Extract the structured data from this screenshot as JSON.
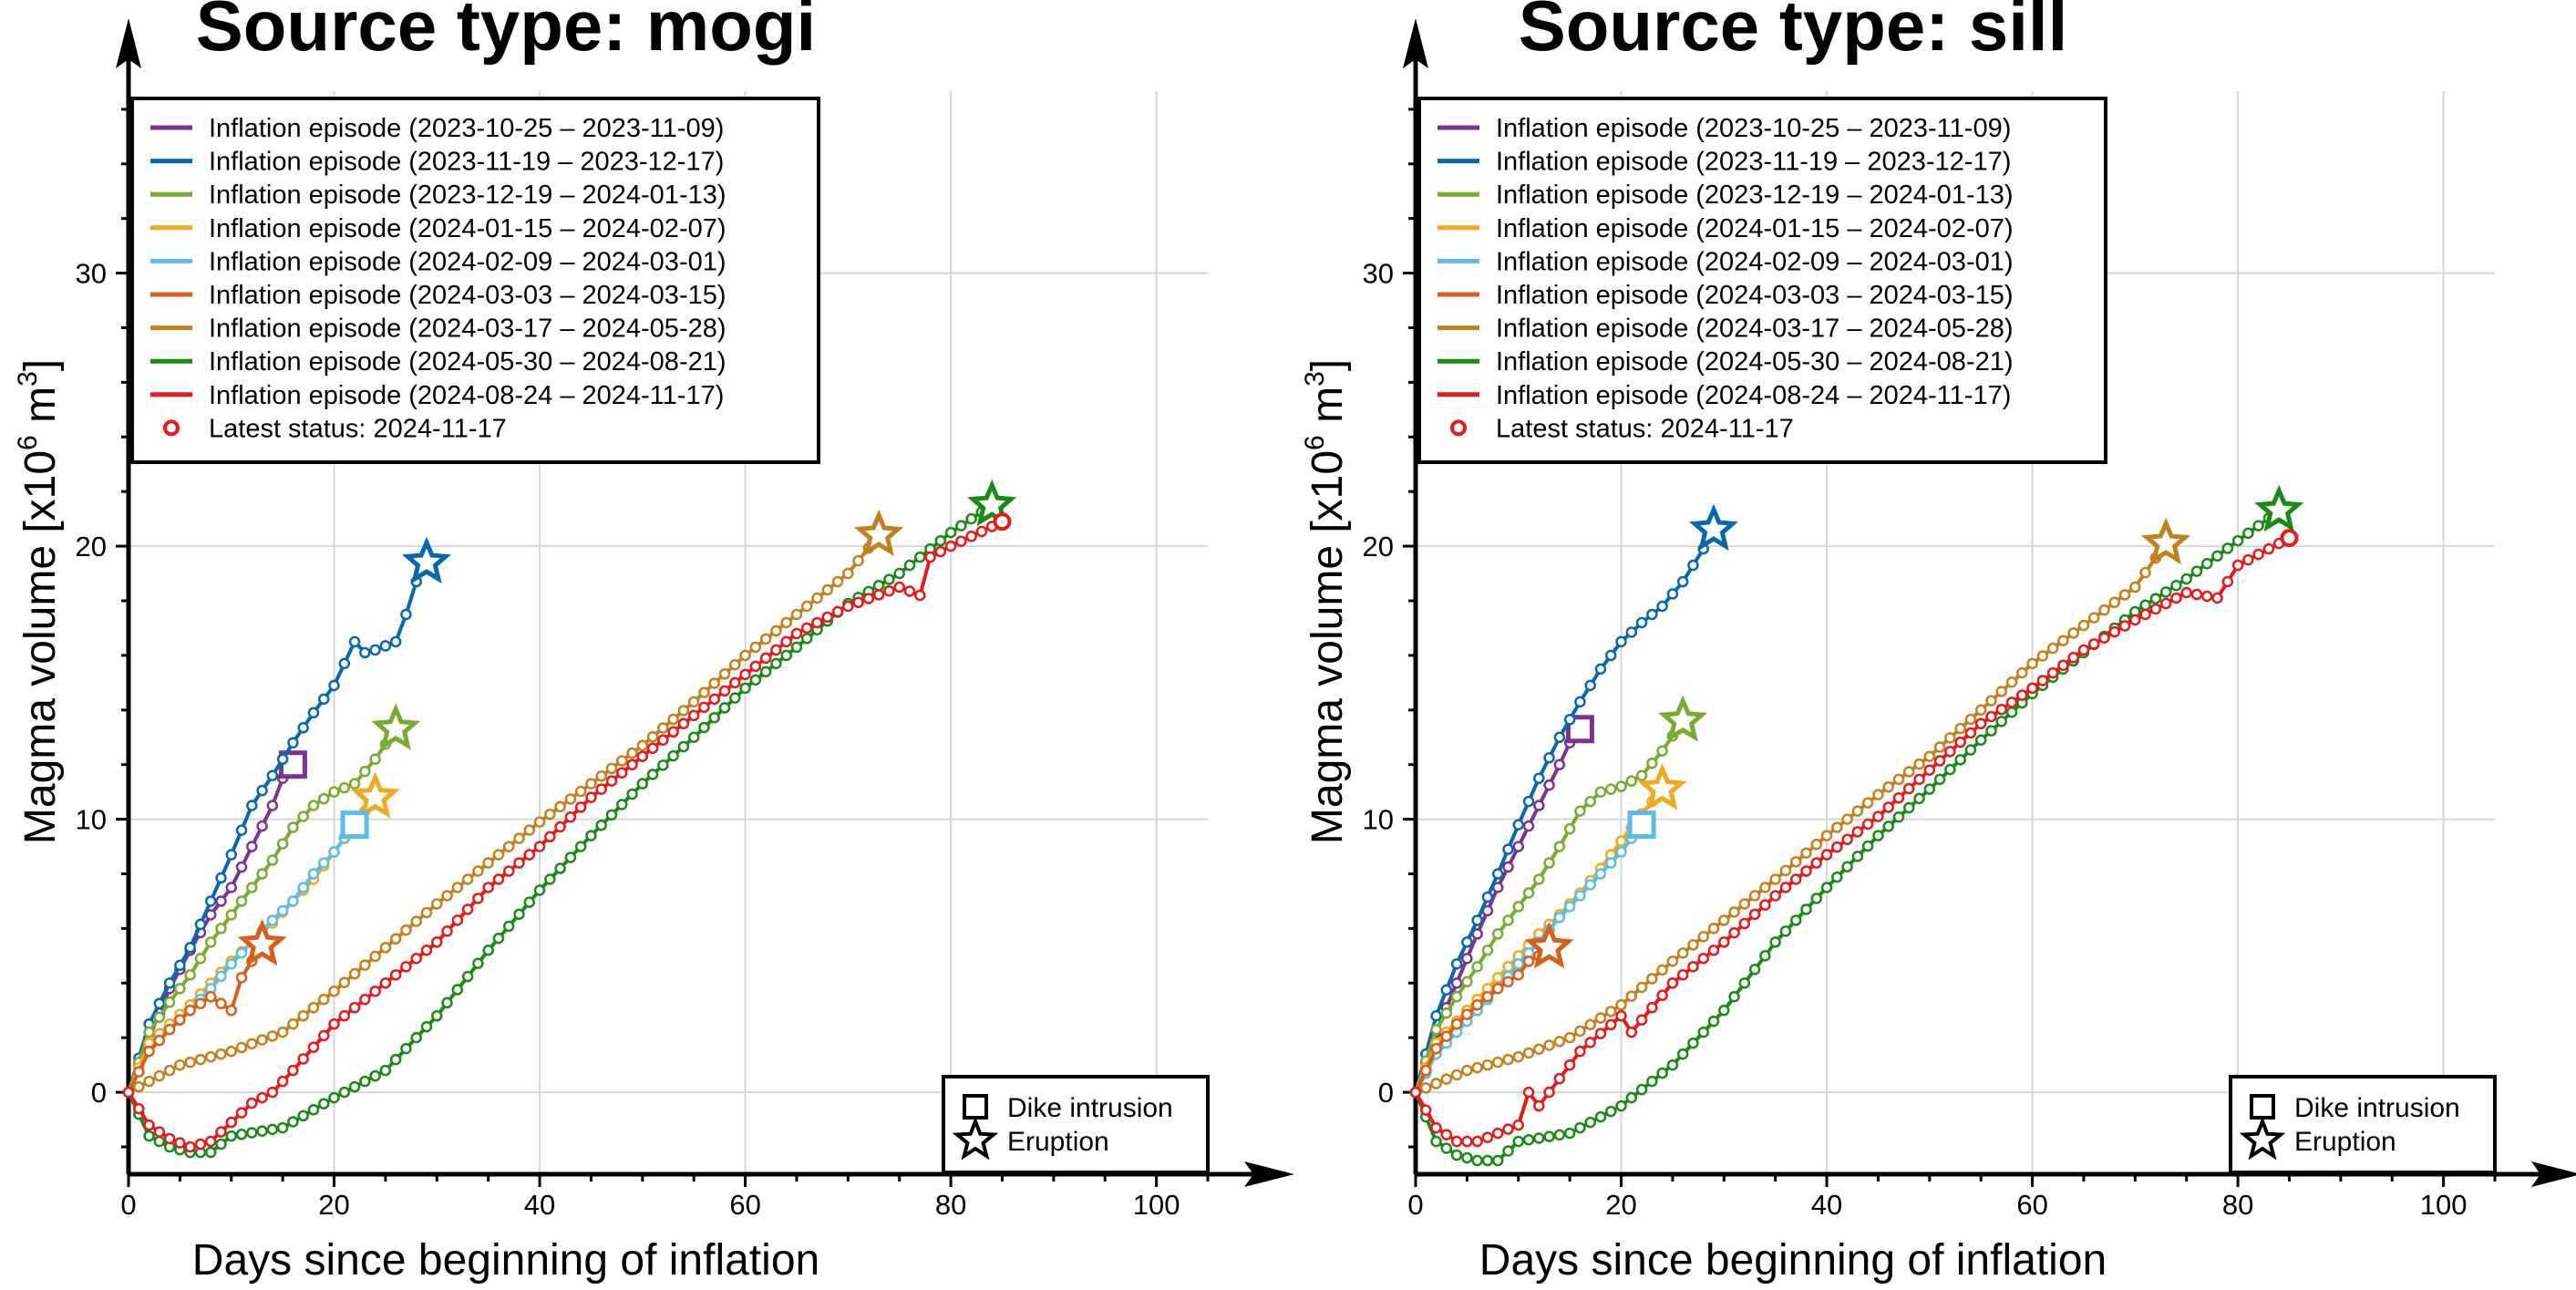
{
  "chart_data": [
    {
      "type": "line",
      "title": "Source type: mogi",
      "xlabel": "Days since beginning of inflation",
      "ylabel_main": "Magma volume [x10",
      "ylabel_exp": "6",
      "ylabel_unit": " m",
      "ylabel_unit_exp": "3",
      "ylabel_end": "]",
      "xlim": [
        0,
        105
      ],
      "ylim": [
        -3,
        39
      ],
      "x_ticks": [
        0,
        20,
        40,
        60,
        80,
        100
      ],
      "y_ticks": [
        0,
        10,
        20,
        30
      ],
      "grid": true,
      "legend_position": "top-left",
      "latest_status": {
        "label": "Latest status: 2024-11-17",
        "x": 85,
        "y": 20.9,
        "color": "#e41a1c"
      },
      "symbol_legend": [
        {
          "symbol": "square",
          "label": "Dike intrusion"
        },
        {
          "symbol": "star",
          "label": "Eruption"
        }
      ],
      "series": [
        {
          "name": "Inflation episode (2023-10-25 – 2023-11-09)",
          "color": "#7b3294",
          "end_event": "dike",
          "x": [
            0,
            2,
            4,
            6,
            8,
            10,
            12,
            14,
            15,
            16
          ],
          "y": [
            0,
            2.0,
            3.8,
            5.2,
            6.5,
            7.5,
            9.0,
            10.5,
            11.5,
            12.0
          ]
        },
        {
          "name": "Inflation episode (2023-11-19 – 2023-12-17)",
          "color": "#0868ac",
          "end_event": "eruption",
          "x": [
            0,
            2,
            4,
            6,
            8,
            10,
            12,
            14,
            16,
            18,
            20,
            22,
            23,
            24,
            26,
            27,
            28,
            29
          ],
          "y": [
            0,
            2.5,
            4.0,
            5.3,
            7.0,
            8.7,
            10.5,
            11.6,
            12.8,
            13.9,
            14.9,
            16.5,
            16.1,
            16.2,
            16.5,
            17.5,
            18.7,
            19.4
          ]
        },
        {
          "name": "Inflation episode (2023-12-19 – 2024-01-13)",
          "color": "#78ab32",
          "end_event": "eruption",
          "x": [
            0,
            2,
            4,
            6,
            8,
            10,
            12,
            14,
            16,
            18,
            20,
            22,
            24,
            26
          ],
          "y": [
            0,
            2.2,
            3.3,
            4.3,
            5.5,
            6.5,
            7.5,
            8.5,
            9.7,
            10.5,
            11.0,
            11.3,
            12.2,
            13.3
          ]
        },
        {
          "name": "Inflation episode (2024-01-15 – 2024-02-07)",
          "color": "#f2a91f",
          "end_event": "eruption",
          "x": [
            0,
            2,
            4,
            6,
            8,
            10,
            12,
            14,
            16,
            18,
            20,
            22,
            24
          ],
          "y": [
            0,
            1.8,
            2.5,
            3.2,
            4.0,
            4.8,
            5.5,
            6.2,
            7.0,
            7.8,
            8.8,
            9.8,
            10.8
          ]
        },
        {
          "name": "Inflation episode (2024-02-09 – 2024-03-01)",
          "color": "#5bbce7",
          "end_event": "dike",
          "x": [
            0,
            2,
            4,
            6,
            8,
            10,
            12,
            14,
            16,
            18,
            20,
            22
          ],
          "y": [
            0,
            1.5,
            2.3,
            3.0,
            3.8,
            4.7,
            5.5,
            6.3,
            7.0,
            8.0,
            8.8,
            9.8
          ]
        },
        {
          "name": "Inflation episode (2024-03-03 – 2024-03-15)",
          "color": "#d95f18",
          "end_event": "eruption",
          "x": [
            0,
            2,
            4,
            6,
            8,
            10,
            11,
            12,
            13
          ],
          "y": [
            0,
            1.5,
            2.3,
            3.0,
            3.5,
            3.0,
            4.2,
            4.8,
            5.4
          ]
        },
        {
          "name": "Inflation episode (2024-03-17 – 2024-05-28)",
          "color": "#c4801c",
          "end_event": "eruption",
          "x": [
            0,
            5,
            10,
            15,
            20,
            25,
            30,
            35,
            40,
            45,
            50,
            55,
            60,
            65,
            70,
            73
          ],
          "y": [
            0,
            1.0,
            1.5,
            2.2,
            3.7,
            5.3,
            6.9,
            8.4,
            9.9,
            11.3,
            12.7,
            14.3,
            16.0,
            17.5,
            19.0,
            20.4
          ]
        },
        {
          "name": "Inflation episode (2024-05-30 – 2024-08-21)",
          "color": "#1a8a16",
          "end_event": "eruption",
          "x": [
            0,
            2,
            4,
            6,
            8,
            10,
            15,
            20,
            25,
            30,
            35,
            40,
            45,
            50,
            55,
            60,
            65,
            70,
            75,
            80,
            84
          ],
          "y": [
            0,
            -1.6,
            -2.0,
            -2.2,
            -2.2,
            -1.6,
            -1.3,
            -0.2,
            0.8,
            2.8,
            5.2,
            7.4,
            9.4,
            11.3,
            13.0,
            14.8,
            16.3,
            17.9,
            19.0,
            20.5,
            21.5
          ]
        },
        {
          "name": "Inflation episode (2024-08-24 – 2024-11-17)",
          "color": "#e41a1c",
          "end_event": "none",
          "x": [
            0,
            2,
            4,
            6,
            8,
            10,
            12,
            14,
            16,
            20,
            25,
            30,
            35,
            40,
            45,
            50,
            55,
            60,
            65,
            70,
            75,
            77,
            78,
            80,
            85
          ],
          "y": [
            0,
            -1.2,
            -1.7,
            -2.0,
            -1.8,
            -1.1,
            -0.4,
            0.0,
            0.8,
            2.5,
            4.0,
            5.5,
            7.5,
            9.0,
            10.8,
            12.3,
            13.8,
            15.3,
            16.8,
            17.8,
            18.5,
            18.2,
            19.6,
            20.0,
            20.9
          ]
        }
      ]
    },
    {
      "type": "line",
      "title": "Source type: sill",
      "xlabel": "Days since beginning of inflation",
      "ylabel_main": "Magma volume [x10",
      "ylabel_exp": "6",
      "ylabel_unit": " m",
      "ylabel_unit_exp": "3",
      "ylabel_end": "]",
      "xlim": [
        0,
        105
      ],
      "ylim": [
        -3,
        39
      ],
      "x_ticks": [
        0,
        20,
        40,
        60,
        80,
        100
      ],
      "y_ticks": [
        0,
        10,
        20,
        30
      ],
      "grid": true,
      "legend_position": "top-left",
      "latest_status": {
        "label": "Latest status: 2024-11-17",
        "x": 85,
        "y": 20.3,
        "color": "#e41a1c"
      },
      "symbol_legend": [
        {
          "symbol": "square",
          "label": "Dike intrusion"
        },
        {
          "symbol": "star",
          "label": "Eruption"
        }
      ],
      "series": [
        {
          "name": "Inflation episode (2023-10-25 – 2023-11-09)",
          "color": "#7b3294",
          "end_event": "dike",
          "x": [
            0,
            2,
            4,
            6,
            8,
            10,
            12,
            14,
            15,
            16
          ],
          "y": [
            0,
            2.2,
            4.0,
            5.8,
            7.5,
            9.0,
            10.5,
            12.0,
            12.8,
            13.3
          ]
        },
        {
          "name": "Inflation episode (2023-11-19 – 2023-12-17)",
          "color": "#0868ac",
          "end_event": "eruption",
          "x": [
            0,
            2,
            4,
            6,
            8,
            10,
            12,
            14,
            16,
            18,
            20,
            22,
            24,
            26,
            28,
            29
          ],
          "y": [
            0,
            2.8,
            4.7,
            6.3,
            8.0,
            9.8,
            11.5,
            13.0,
            14.3,
            15.5,
            16.5,
            17.2,
            17.8,
            18.7,
            19.9,
            20.6
          ]
        },
        {
          "name": "Inflation episode (2023-12-19 – 2024-01-13)",
          "color": "#78ab32",
          "end_event": "eruption",
          "x": [
            0,
            2,
            4,
            6,
            8,
            10,
            12,
            14,
            16,
            18,
            20,
            22,
            24,
            26
          ],
          "y": [
            0,
            2.3,
            3.5,
            4.6,
            5.8,
            6.8,
            7.8,
            9.0,
            10.3,
            11.0,
            11.2,
            11.6,
            12.5,
            13.6
          ]
        },
        {
          "name": "Inflation episode (2024-01-15 – 2024-02-07)",
          "color": "#f2a91f",
          "end_event": "eruption",
          "x": [
            0,
            2,
            4,
            6,
            8,
            10,
            12,
            14,
            16,
            18,
            20,
            22,
            24
          ],
          "y": [
            0,
            1.8,
            2.6,
            3.4,
            4.2,
            5.0,
            5.8,
            6.5,
            7.3,
            8.2,
            9.2,
            10.2,
            11.1
          ]
        },
        {
          "name": "Inflation episode (2024-02-09 – 2024-03-01)",
          "color": "#5bbce7",
          "end_event": "dike",
          "x": [
            0,
            2,
            4,
            6,
            8,
            10,
            12,
            14,
            16,
            18,
            20,
            22
          ],
          "y": [
            0,
            1.4,
            2.2,
            3.0,
            3.8,
            4.7,
            5.5,
            6.4,
            7.2,
            8.0,
            8.8,
            9.8
          ]
        },
        {
          "name": "Inflation episode (2024-03-03 – 2024-03-15)",
          "color": "#d95f18",
          "end_event": "eruption",
          "x": [
            0,
            2,
            4,
            6,
            8,
            10,
            11,
            12,
            13
          ],
          "y": [
            0,
            1.6,
            2.5,
            3.2,
            3.8,
            4.3,
            4.8,
            5.0,
            5.3
          ]
        },
        {
          "name": "Inflation episode (2024-03-17 – 2024-05-28)",
          "color": "#c4801c",
          "end_event": "eruption",
          "x": [
            0,
            5,
            10,
            15,
            20,
            25,
            30,
            35,
            40,
            45,
            50,
            55,
            60,
            65,
            70,
            73
          ],
          "y": [
            0,
            0.8,
            1.3,
            2.0,
            3.2,
            4.8,
            6.3,
            7.8,
            9.4,
            10.9,
            12.3,
            14.0,
            15.7,
            17.1,
            18.5,
            20.1
          ]
        },
        {
          "name": "Inflation episode (2024-05-30 – 2024-08-21)",
          "color": "#1a8a16",
          "end_event": "eruption",
          "x": [
            0,
            2,
            4,
            6,
            8,
            10,
            15,
            20,
            25,
            30,
            35,
            40,
            45,
            50,
            55,
            60,
            65,
            70,
            75,
            80,
            84
          ],
          "y": [
            0,
            -1.8,
            -2.3,
            -2.5,
            -2.5,
            -1.8,
            -1.5,
            -0.5,
            1.0,
            3.0,
            5.5,
            7.5,
            9.4,
            11.1,
            12.9,
            14.6,
            16.1,
            17.6,
            18.8,
            20.2,
            21.3
          ]
        },
        {
          "name": "Inflation episode (2024-08-24 – 2024-11-17)",
          "color": "#e41a1c",
          "end_event": "none",
          "x": [
            0,
            2,
            4,
            6,
            8,
            10,
            11,
            12,
            14,
            16,
            20,
            21,
            25,
            30,
            35,
            40,
            45,
            50,
            55,
            60,
            65,
            70,
            75,
            78,
            80,
            85
          ],
          "y": [
            0,
            -1.3,
            -1.8,
            -1.8,
            -1.5,
            -1.2,
            0.0,
            -0.5,
            0.5,
            1.5,
            2.8,
            2.2,
            4.0,
            5.5,
            7.2,
            8.7,
            10.1,
            11.8,
            13.5,
            14.8,
            16.2,
            17.3,
            18.3,
            18.1,
            19.3,
            20.3
          ]
        }
      ]
    }
  ]
}
